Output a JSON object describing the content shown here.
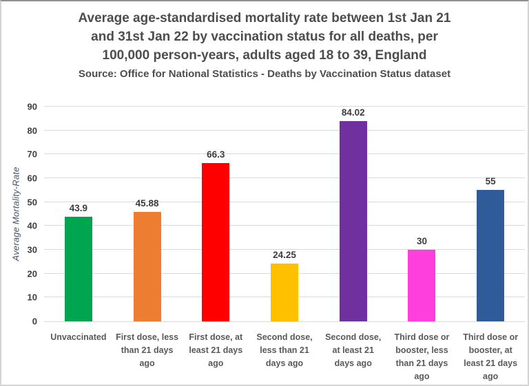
{
  "chart_data": {
    "type": "bar",
    "title": "Average age-standardised mortality rate between 1st Jan 21 and  31st Jan 22 by vaccination status for all deaths, per 100,000 person-years, adults aged 18 to 39, England",
    "title_lines": [
      "Average age-standardised mortality rate between 1st Jan 21",
      "and  31st Jan 22 by vaccination status for all deaths, per",
      "100,000 person-years, adults aged 18 to 39, England"
    ],
    "source": "Source: Office for National Statistics - Deaths by Vaccination Status dataset",
    "xlabel": "",
    "ylabel": "Average Mortality-Rate",
    "ylim": [
      0,
      90
    ],
    "ytick_step": 10,
    "yticks": [
      0,
      10,
      20,
      30,
      40,
      50,
      60,
      70,
      80,
      90
    ],
    "grid": "horizontal-light-gray",
    "legend": "none",
    "categories": [
      "Unvaccinated",
      "First dose, less than 21 days ago",
      "First dose, at least 21 days ago",
      "Second dose, less than 21 days ago",
      "Second dose, at least 21 days ago",
      "Third dose or booster, less than 21 days ago",
      "Third dose or booster, at least 21 days ago"
    ],
    "categories_wrapped": [
      [
        "Unvaccinated"
      ],
      [
        "First dose, less",
        "than 21 days",
        "ago"
      ],
      [
        "First dose, at",
        "least 21 days",
        "ago"
      ],
      [
        "Second dose,",
        "less than 21",
        "days ago"
      ],
      [
        "Second dose,",
        "at least 21",
        "days ago"
      ],
      [
        "Third dose or",
        "booster, less",
        "than 21 days",
        "ago"
      ],
      [
        "Third dose or",
        "booster, at",
        "least 21 days",
        "ago"
      ]
    ],
    "values": [
      43.9,
      45.88,
      66.3,
      24.25,
      84.02,
      30,
      55
    ],
    "value_labels": [
      "43.9",
      "45.88",
      "66.3",
      "24.25",
      "84.02",
      "30",
      "55"
    ],
    "bar_colors": [
      "#00A550",
      "#ED7D31",
      "#FF0000",
      "#FFC000",
      "#7030A0",
      "#FF3EDE",
      "#2F5B9B"
    ],
    "text_colors": {
      "title": "#4d4d4d",
      "axis_labels": "#3f3f3f",
      "category_labels": "#595959",
      "y_axis_title": "#44546a"
    },
    "gridline_color": "#d9d9d9"
  }
}
